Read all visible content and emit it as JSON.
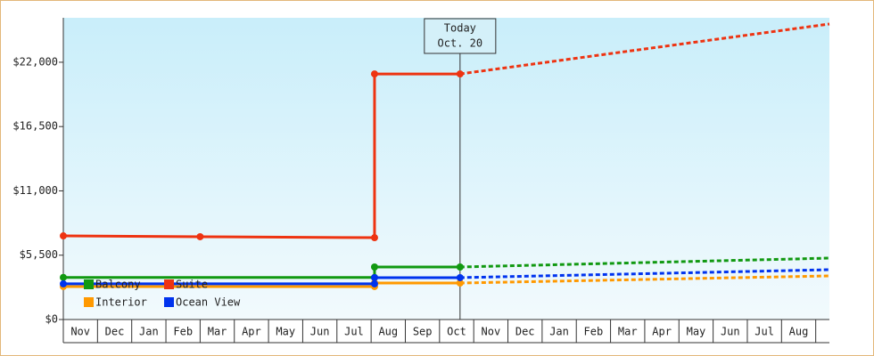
{
  "chart_data": {
    "type": "line",
    "xlim": [
      0,
      22.4
    ],
    "xticks": [
      {
        "value": 0,
        "label": "Nov"
      },
      {
        "value": 1,
        "label": "Dec"
      },
      {
        "value": 2,
        "label": "Jan"
      },
      {
        "value": 3,
        "label": "Feb"
      },
      {
        "value": 4,
        "label": "Mar"
      },
      {
        "value": 5,
        "label": "Apr"
      },
      {
        "value": 6,
        "label": "May"
      },
      {
        "value": 7,
        "label": "Jun"
      },
      {
        "value": 8,
        "label": "Jul"
      },
      {
        "value": 9,
        "label": "Aug"
      },
      {
        "value": 10,
        "label": "Sep"
      },
      {
        "value": 11,
        "label": "Oct"
      },
      {
        "value": 12,
        "label": "Nov"
      },
      {
        "value": 13,
        "label": "Dec"
      },
      {
        "value": 14,
        "label": "Jan"
      },
      {
        "value": 15,
        "label": "Feb"
      },
      {
        "value": 16,
        "label": "Mar"
      },
      {
        "value": 17,
        "label": "Apr"
      },
      {
        "value": 18,
        "label": "May"
      },
      {
        "value": 19,
        "label": "Jun"
      },
      {
        "value": 20,
        "label": "Jul"
      },
      {
        "value": 21,
        "label": "Aug"
      }
    ],
    "ylim": [
      0,
      25800
    ],
    "yticks": [
      {
        "value": 0,
        "label": "$0"
      },
      {
        "value": 5500,
        "label": "$5,500"
      },
      {
        "value": 11000,
        "label": "$11,000"
      },
      {
        "value": 16500,
        "label": "$16,500"
      },
      {
        "value": 22000,
        "label": "$22,000"
      }
    ],
    "today": {
      "label": "Today",
      "date": "Oct. 20",
      "x": 11.6
    },
    "series": [
      {
        "name": "Balcony",
        "color": "#119911",
        "x": [
          0,
          9.1,
          9.1,
          11.6
        ],
        "values": [
          3600,
          3600,
          4490,
          4490
        ],
        "forecast": {
          "x": [
            11.6,
            22.4
          ],
          "values": [
            4490,
            5250
          ]
        }
      },
      {
        "name": "Suite",
        "color": "#ee3311",
        "x": [
          0,
          4,
          9.1,
          9.1,
          11.6
        ],
        "values": [
          7150,
          7080,
          7000,
          21000,
          21000
        ],
        "forecast": {
          "x": [
            11.6,
            22.4
          ],
          "values": [
            21000,
            25270
          ]
        }
      },
      {
        "name": "Interior",
        "color": "#ff9900",
        "x": [
          0,
          9.1,
          9.1,
          11.6
        ],
        "values": [
          2820,
          2820,
          3120,
          3120
        ],
        "forecast": {
          "x": [
            11.6,
            22.4
          ],
          "values": [
            3120,
            3730
          ]
        }
      },
      {
        "name": "Ocean View",
        "color": "#0033ee",
        "x": [
          0,
          9.1,
          9.1,
          11.6
        ],
        "values": [
          3050,
          3050,
          3580,
          3580
        ],
        "forecast": {
          "x": [
            11.6,
            22.4
          ],
          "values": [
            3580,
            4260
          ]
        }
      }
    ]
  }
}
